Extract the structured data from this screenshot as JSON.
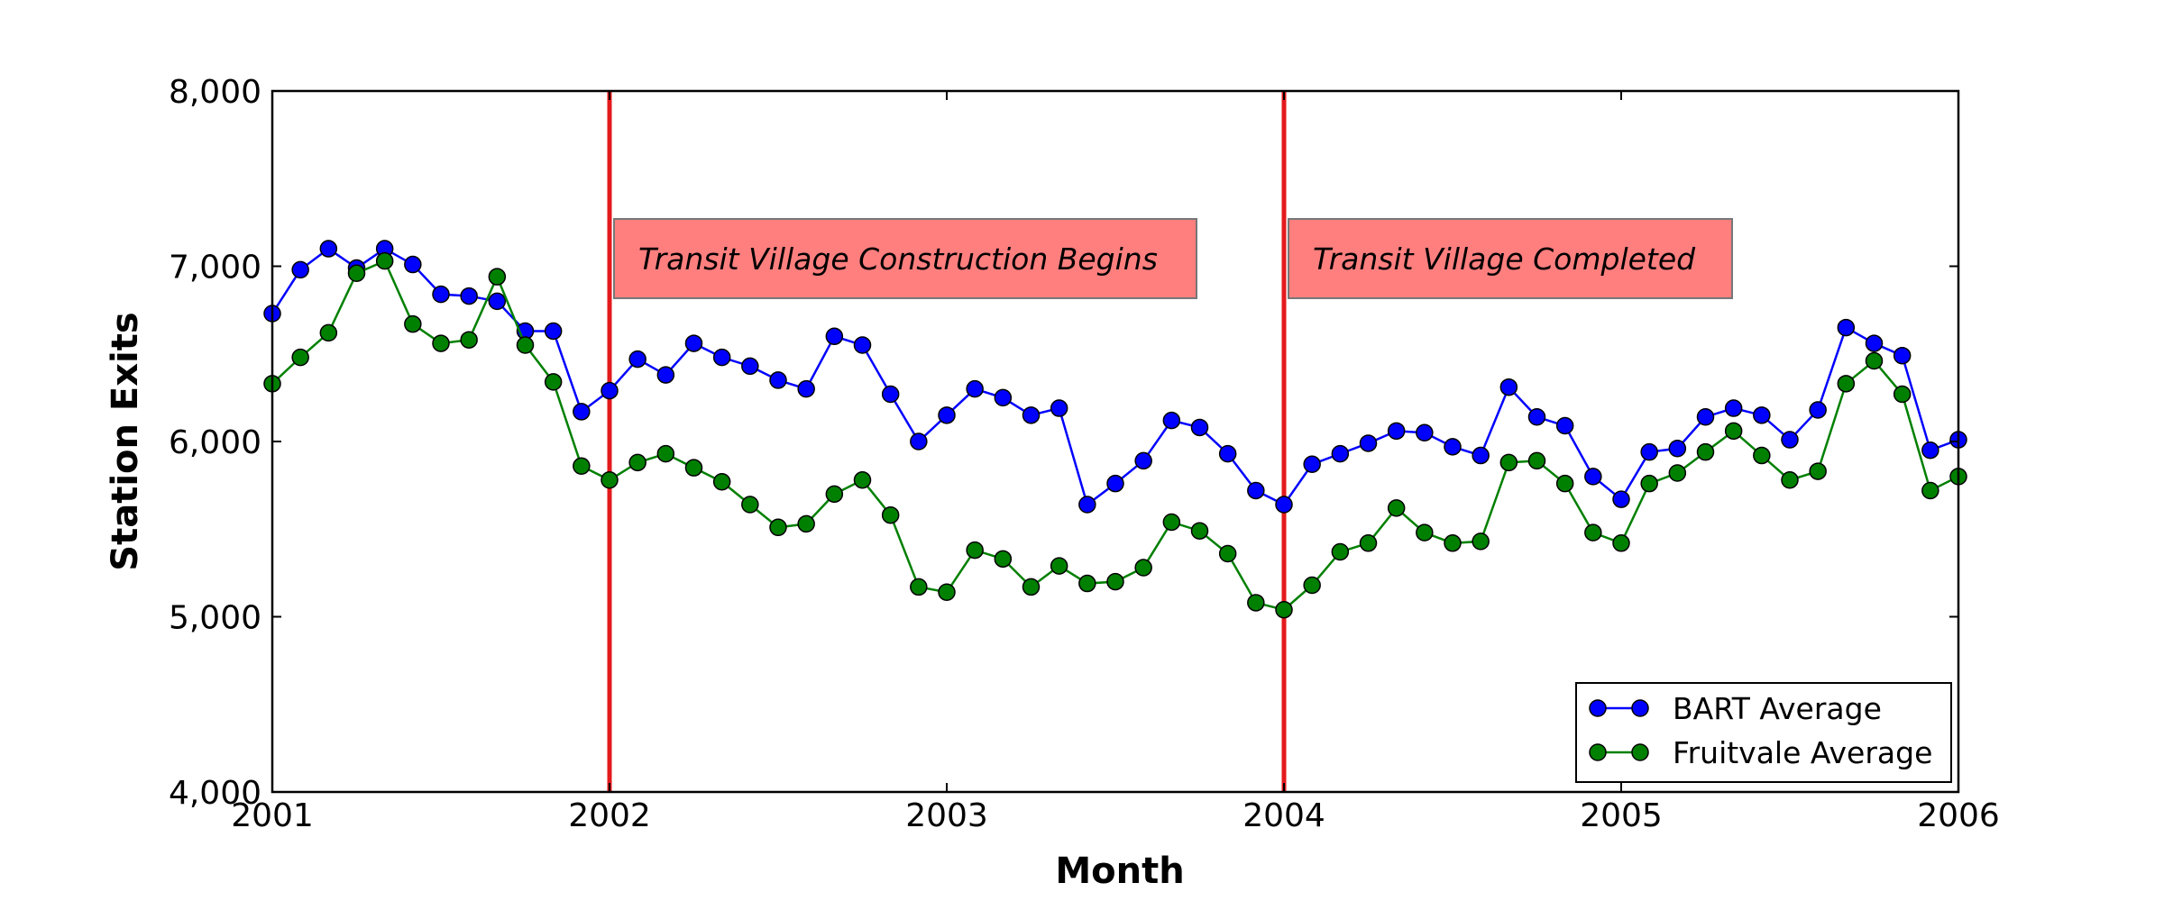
{
  "chart_data": {
    "type": "line",
    "xlabel": "Month",
    "ylabel": "Station Exits",
    "xlim": [
      "2001-01",
      "2006-01"
    ],
    "ylim": [
      4000,
      8000
    ],
    "xticks": [
      "2001",
      "2002",
      "2003",
      "2004",
      "2005",
      "2006"
    ],
    "yticks": [
      "4,000",
      "5,000",
      "6,000",
      "7,000",
      "8,000"
    ],
    "grid": false,
    "legend_position": "bottom-right",
    "x": [
      "2001-01",
      "2001-02",
      "2001-03",
      "2001-04",
      "2001-05",
      "2001-06",
      "2001-07",
      "2001-08",
      "2001-09",
      "2001-10",
      "2001-11",
      "2001-12",
      "2002-01",
      "2002-02",
      "2002-03",
      "2002-04",
      "2002-05",
      "2002-06",
      "2002-07",
      "2002-08",
      "2002-09",
      "2002-10",
      "2002-11",
      "2002-12",
      "2003-01",
      "2003-02",
      "2003-03",
      "2003-04",
      "2003-05",
      "2003-06",
      "2003-07",
      "2003-08",
      "2003-09",
      "2003-10",
      "2003-11",
      "2003-12",
      "2004-01",
      "2004-02",
      "2004-03",
      "2004-04",
      "2004-05",
      "2004-06",
      "2004-07",
      "2004-08",
      "2004-09",
      "2004-10",
      "2004-11",
      "2004-12",
      "2005-01",
      "2005-02",
      "2005-03",
      "2005-04",
      "2005-05",
      "2005-06",
      "2005-07",
      "2005-08",
      "2005-09",
      "2005-10",
      "2005-11",
      "2005-12",
      "2006-01"
    ],
    "series": [
      {
        "name": "BART Average",
        "color": "#0000ff",
        "values": [
          6730,
          6980,
          7100,
          6990,
          7100,
          7010,
          6840,
          6830,
          6800,
          6630,
          6630,
          6170,
          6290,
          6470,
          6380,
          6560,
          6480,
          6430,
          6350,
          6300,
          6600,
          6550,
          6270,
          6000,
          6150,
          6300,
          6250,
          6150,
          6190,
          5640,
          5760,
          5890,
          6120,
          6080,
          5930,
          5720,
          5640,
          5870,
          5930,
          5990,
          6060,
          6050,
          5970,
          5920,
          6310,
          6140,
          6090,
          5800,
          5670,
          5940,
          5960,
          6140,
          6190,
          6150,
          6010,
          6180,
          6650,
          6560,
          6490,
          5950,
          6010
        ]
      },
      {
        "name": "Fruitvale Average",
        "color": "#008000",
        "values": [
          6330,
          6480,
          6620,
          6960,
          7030,
          6670,
          6560,
          6580,
          6940,
          6550,
          6340,
          5860,
          5780,
          5880,
          5930,
          5850,
          5770,
          5640,
          5510,
          5530,
          5700,
          5780,
          5580,
          5170,
          5140,
          5380,
          5330,
          5170,
          5290,
          5190,
          5200,
          5280,
          5540,
          5490,
          5360,
          5080,
          5040,
          5180,
          5370,
          5420,
          5620,
          5480,
          5420,
          5430,
          5880,
          5890,
          5760,
          5480,
          5420,
          5760,
          5820,
          5940,
          6060,
          5920,
          5780,
          5830,
          6330,
          6460,
          6270,
          5720,
          5800
        ]
      }
    ],
    "annotations": [
      {
        "x": "2002-01",
        "label": "Transit Village Construction Begins",
        "line_color": "#e41a1c",
        "box_color": "#ff7f7f"
      },
      {
        "x": "2004-01",
        "label": "Transit Village Completed",
        "line_color": "#e41a1c",
        "box_color": "#ff7f7f"
      }
    ]
  }
}
